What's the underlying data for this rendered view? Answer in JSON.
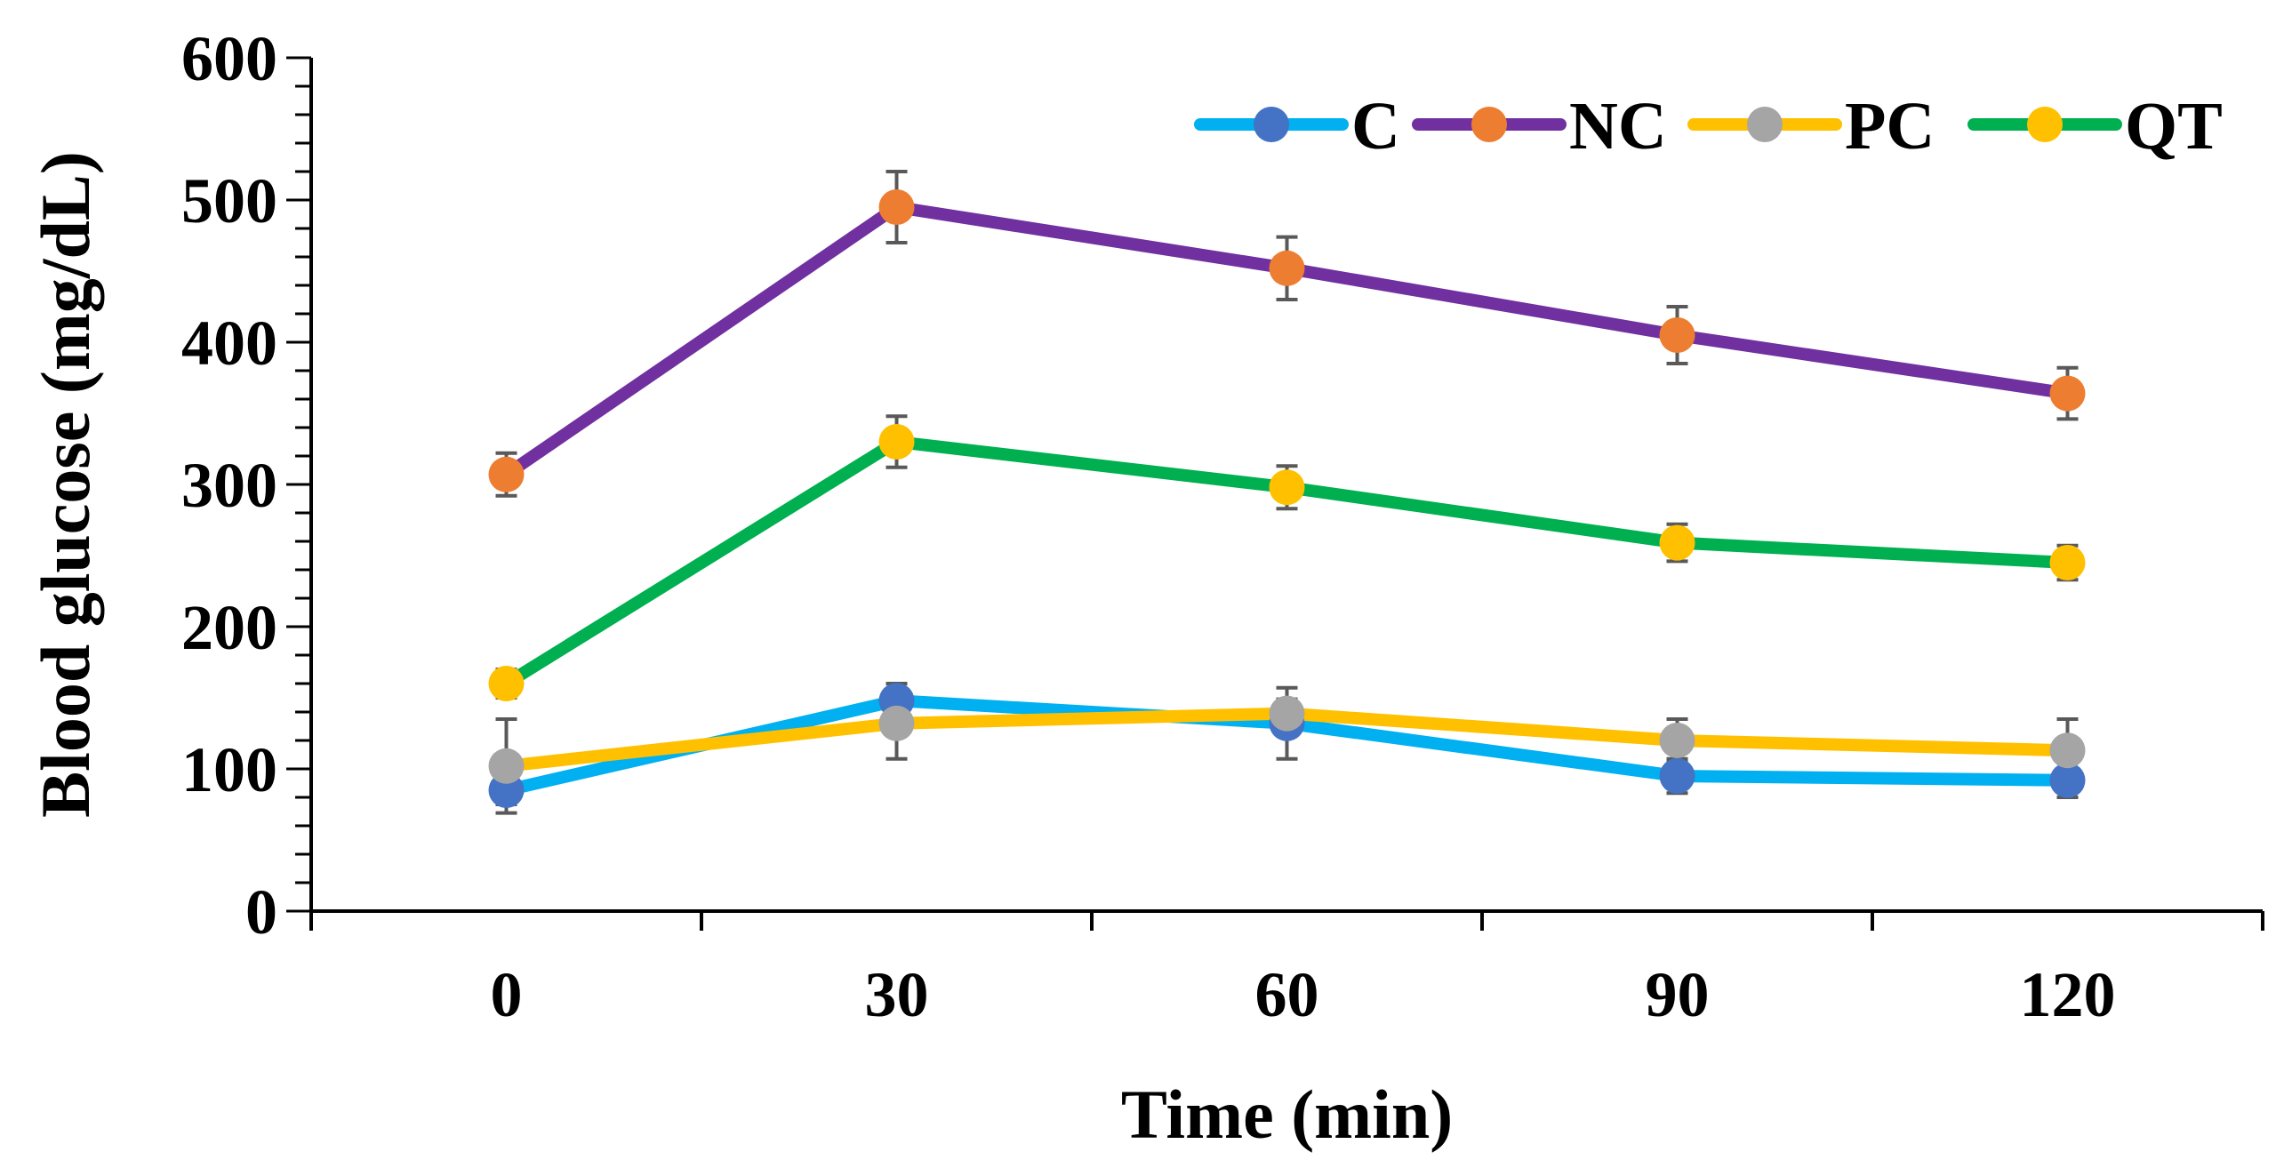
{
  "chart_data": {
    "type": "line",
    "title": "",
    "xlabel": "Time (min)",
    "ylabel": "Blood glucose (mg/dL)",
    "x": [
      0,
      30,
      60,
      90,
      120
    ],
    "x_tick_labels": [
      "0",
      "30",
      "60",
      "90",
      "120"
    ],
    "xlim": [
      -15,
      135
    ],
    "ylim": [
      0,
      600
    ],
    "y_ticks": [
      0,
      100,
      200,
      300,
      400,
      500,
      600
    ],
    "y_tick_labels": [
      "0",
      "100",
      "200",
      "300",
      "400",
      "500",
      "600"
    ],
    "grid": false,
    "legend_position": "top-right",
    "series": [
      {
        "name": "C",
        "line_color": "#00B0F0",
        "marker_color": "#4472C4",
        "values": [
          85,
          148,
          132,
          95,
          92
        ],
        "errors": [
          10,
          12,
          25,
          12,
          12
        ]
      },
      {
        "name": "NC",
        "line_color": "#7030A0",
        "marker_color": "#ED7D31",
        "values": [
          307,
          495,
          452,
          405,
          364
        ],
        "errors": [
          15,
          25,
          22,
          20,
          18
        ]
      },
      {
        "name": "PC",
        "line_color": "#FFC000",
        "marker_color": "#A5A5A5",
        "values": [
          102,
          132,
          139,
          120,
          113
        ],
        "errors": [
          33,
          25,
          10,
          15,
          22
        ]
      },
      {
        "name": "QT",
        "line_color": "#00B050",
        "marker_color": "#FFC000",
        "values": [
          160,
          330,
          298,
          259,
          245
        ],
        "errors": [
          10,
          18,
          15,
          13,
          12
        ]
      }
    ]
  }
}
